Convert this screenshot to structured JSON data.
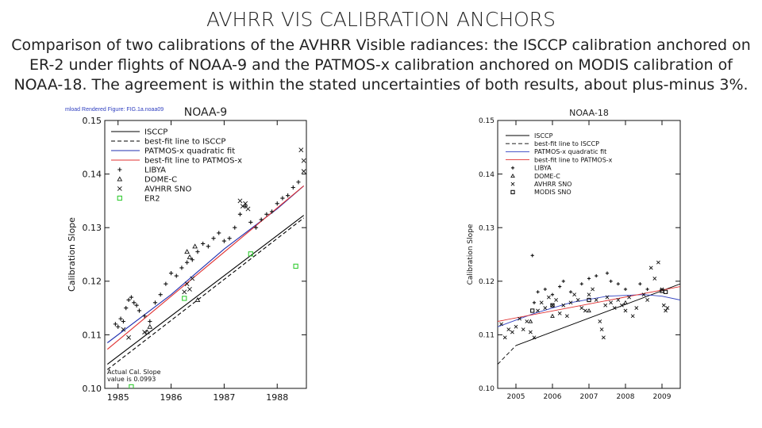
{
  "slide": {
    "title": "AVHRR VIS CALIBRATION ANCHORS",
    "caption": "Comparison of two calibrations of the AVHRR Visible radiances: the ISCCP calibration anchored on ER-2 under flights of NOAA-9 and the PATMOS-x calibration anchored on MODIS calibration of NOAA-18. The agreement is within the stated uncertainties of both results, about plus-minus 3%.",
    "banner": "mload Rendered Figure: FIG.1a.noaa09"
  },
  "chart_data": [
    {
      "type": "scatter",
      "title": "NOAA-9",
      "ylabel": "Calibration Slope",
      "xlabel": "",
      "xlim": [
        1984.75,
        1988.55
      ],
      "ylim": [
        0.1,
        0.15
      ],
      "xticks": [
        1985,
        1986,
        1987,
        1988
      ],
      "yticks": [
        0.1,
        0.11,
        0.12,
        0.13,
        0.14,
        0.15
      ],
      "ytick_labels": [
        "0.10",
        "0.11",
        "0.12",
        "0.13",
        "0.14",
        "0.15"
      ],
      "legend": [
        "ISCCP",
        "best-fit line to ISCCP",
        "PATMOS-x quadratic fit",
        "best-fit line to PATMOS-x",
        "LIBYA",
        "DOME-C",
        "AVHRR SNO",
        "ER2"
      ],
      "legend_position": "top-left",
      "annotation": [
        "Actual Cal. Slope",
        "value is 0.0993"
      ],
      "colors": {
        "isccp": "#000000",
        "patmos_fit": "#2030b0",
        "patmos_line": "#e03030",
        "er2": "#33cc33"
      },
      "series": [
        {
          "name": "ISCCP",
          "style": "solid",
          "points": [
            [
              1984.8,
              0.1045
            ],
            [
              1988.5,
              0.1323
            ]
          ]
        },
        {
          "name": "best-fit line to ISCCP",
          "style": "dashed",
          "points": [
            [
              1984.8,
              0.1035
            ],
            [
              1988.5,
              0.1318
            ]
          ]
        },
        {
          "name": "PATMOS-x quadratic fit",
          "style": "solid",
          "points": [
            [
              1984.8,
              0.1085
            ],
            [
              1986.0,
              0.1175
            ],
            [
              1987.0,
              0.126
            ],
            [
              1988.0,
              0.1335
            ],
            [
              1988.5,
              0.1378
            ]
          ]
        },
        {
          "name": "best-fit line to PATMOS-x",
          "style": "solid",
          "points": [
            [
              1984.8,
              0.1073
            ],
            [
              1988.5,
              0.1378
            ]
          ]
        },
        {
          "name": "LIBYA",
          "marker": "plus",
          "points": [
            [
              1984.95,
              0.112
            ],
            [
              1985.0,
              0.1115
            ],
            [
              1985.05,
              0.113
            ],
            [
              1985.1,
              0.1125
            ],
            [
              1985.15,
              0.115
            ],
            [
              1985.2,
              0.1165
            ],
            [
              1985.25,
              0.117
            ],
            [
              1985.3,
              0.116
            ],
            [
              1985.35,
              0.1155
            ],
            [
              1985.4,
              0.1145
            ],
            [
              1985.5,
              0.1135
            ],
            [
              1985.6,
              0.1125
            ],
            [
              1985.7,
              0.116
            ],
            [
              1985.8,
              0.1175
            ],
            [
              1985.9,
              0.1195
            ],
            [
              1986.0,
              0.1215
            ],
            [
              1986.1,
              0.121
            ],
            [
              1986.2,
              0.1225
            ],
            [
              1986.3,
              0.1235
            ],
            [
              1986.4,
              0.124
            ],
            [
              1986.5,
              0.1255
            ],
            [
              1986.6,
              0.127
            ],
            [
              1986.7,
              0.1265
            ],
            [
              1986.8,
              0.128
            ],
            [
              1986.9,
              0.129
            ],
            [
              1987.0,
              0.1275
            ],
            [
              1987.1,
              0.128
            ],
            [
              1987.2,
              0.13
            ],
            [
              1987.3,
              0.1325
            ],
            [
              1987.4,
              0.134
            ],
            [
              1987.5,
              0.131
            ],
            [
              1987.6,
              0.13
            ],
            [
              1987.7,
              0.1315
            ],
            [
              1987.8,
              0.1325
            ],
            [
              1987.9,
              0.133
            ],
            [
              1988.0,
              0.1345
            ],
            [
              1988.1,
              0.1355
            ],
            [
              1988.2,
              0.136
            ],
            [
              1988.3,
              0.1375
            ],
            [
              1988.4,
              0.1385
            ]
          ]
        },
        {
          "name": "DOME-C",
          "marker": "triangle",
          "points": [
            [
              1985.55,
              0.1105
            ],
            [
              1985.6,
              0.1115
            ],
            [
              1986.3,
              0.1255
            ],
            [
              1986.35,
              0.1245
            ],
            [
              1986.45,
              0.1265
            ],
            [
              1986.5,
              0.1165
            ]
          ]
        },
        {
          "name": "AVHRR SNO",
          "marker": "x",
          "points": [
            [
              1985.1,
              0.111
            ],
            [
              1985.2,
              0.1095
            ],
            [
              1985.5,
              0.1105
            ],
            [
              1986.25,
              0.118
            ],
            [
              1986.3,
              0.1195
            ],
            [
              1986.35,
              0.1185
            ],
            [
              1986.4,
              0.1205
            ],
            [
              1987.3,
              0.135
            ],
            [
              1987.35,
              0.134
            ],
            [
              1987.4,
              0.1345
            ],
            [
              1987.45,
              0.1335
            ],
            [
              1988.45,
              0.1445
            ],
            [
              1988.5,
              0.1425
            ],
            [
              1988.5,
              0.1405
            ]
          ]
        },
        {
          "name": "ER2",
          "marker": "square",
          "points": [
            [
              1985.25,
              0.1003
            ],
            [
              1986.25,
              0.1168
            ],
            [
              1987.5,
              0.1251
            ],
            [
              1988.35,
              0.1228
            ]
          ]
        }
      ]
    },
    {
      "type": "scatter",
      "title": "NOAA-18",
      "ylabel": "Calibration Slope",
      "xlabel": "",
      "xlim": [
        2004.5,
        2009.5
      ],
      "ylim": [
        0.1,
        0.15
      ],
      "xticks": [
        2005,
        2006,
        2007,
        2008,
        2009
      ],
      "yticks": [
        0.1,
        0.11,
        0.12,
        0.13,
        0.14,
        0.15
      ],
      "ytick_labels": [
        "0.10",
        "0.11",
        "0.12",
        "0.13",
        "0.14",
        "0.15"
      ],
      "legend": [
        "ISCCP",
        "best-fit line to ISCCP",
        "PATMOS-x quadratic fit",
        "best-fit line to PATMOS-x",
        "LIBYA",
        "DOME-C",
        "AVHRR SNO",
        "MODIS SNO"
      ],
      "legend_position": "top-left",
      "colors": {
        "isccp": "#000000",
        "patmos_fit": "#3040c0",
        "patmos_line": "#e03030"
      },
      "series": [
        {
          "name": "ISCCP",
          "style": "solid",
          "points": [
            [
              2005.0,
              0.108
            ],
            [
              2009.5,
              0.1195
            ]
          ]
        },
        {
          "name": "best-fit line to ISCCP",
          "style": "dashed",
          "points": [
            [
              2004.5,
              0.1045
            ],
            [
              2005.0,
              0.108
            ]
          ]
        },
        {
          "name": "PATMOS-x quadratic fit",
          "style": "solid",
          "points": [
            [
              2004.5,
              0.1115
            ],
            [
              2005.5,
              0.114
            ],
            [
              2006.5,
              0.116
            ],
            [
              2007.5,
              0.1172
            ],
            [
              2008.5,
              0.1175
            ],
            [
              2009.0,
              0.1172
            ],
            [
              2009.5,
              0.1165
            ]
          ]
        },
        {
          "name": "best-fit line to PATMOS-x",
          "style": "solid",
          "points": [
            [
              2004.5,
              0.1125
            ],
            [
              2009.5,
              0.119
            ]
          ]
        },
        {
          "name": "LIBYA",
          "marker": "plus",
          "points": [
            [
              2005.45,
              0.1248
            ],
            [
              2005.5,
              0.116
            ],
            [
              2005.6,
              0.118
            ],
            [
              2005.8,
              0.1185
            ],
            [
              2006.0,
              0.1175
            ],
            [
              2006.2,
              0.119
            ],
            [
              2006.3,
              0.12
            ],
            [
              2006.5,
              0.118
            ],
            [
              2006.8,
              0.1195
            ],
            [
              2007.0,
              0.1205
            ],
            [
              2007.2,
              0.121
            ],
            [
              2007.5,
              0.1215
            ],
            [
              2007.6,
              0.12
            ],
            [
              2007.8,
              0.1195
            ],
            [
              2008.0,
              0.1185
            ],
            [
              2008.4,
              0.1195
            ],
            [
              2008.6,
              0.1185
            ]
          ]
        },
        {
          "name": "DOME-C",
          "marker": "triangle",
          "points": [
            [
              2005.4,
              0.1125
            ],
            [
              2006.0,
              0.1135
            ],
            [
              2007.0,
              0.1145
            ],
            [
              2008.0,
              0.116
            ]
          ]
        },
        {
          "name": "AVHRR SNO",
          "marker": "x",
          "points": [
            [
              2004.6,
              0.112
            ],
            [
              2004.7,
              0.1095
            ],
            [
              2004.8,
              0.111
            ],
            [
              2004.9,
              0.1105
            ],
            [
              2005.0,
              0.1115
            ],
            [
              2005.1,
              0.113
            ],
            [
              2005.2,
              0.111
            ],
            [
              2005.3,
              0.1125
            ],
            [
              2005.4,
              0.1105
            ],
            [
              2005.5,
              0.1095
            ],
            [
              2005.6,
              0.1145
            ],
            [
              2005.7,
              0.116
            ],
            [
              2005.8,
              0.115
            ],
            [
              2005.9,
              0.117
            ],
            [
              2006.0,
              0.1155
            ],
            [
              2006.1,
              0.1165
            ],
            [
              2006.2,
              0.114
            ],
            [
              2006.3,
              0.1155
            ],
            [
              2006.4,
              0.1135
            ],
            [
              2006.5,
              0.116
            ],
            [
              2006.6,
              0.1175
            ],
            [
              2006.7,
              0.1165
            ],
            [
              2006.8,
              0.115
            ],
            [
              2006.9,
              0.1145
            ],
            [
              2007.0,
              0.1175
            ],
            [
              2007.1,
              0.1185
            ],
            [
              2007.2,
              0.1165
            ],
            [
              2007.3,
              0.1125
            ],
            [
              2007.35,
              0.111
            ],
            [
              2007.4,
              0.1095
            ],
            [
              2007.45,
              0.1155
            ],
            [
              2007.5,
              0.117
            ],
            [
              2007.6,
              0.116
            ],
            [
              2007.7,
              0.115
            ],
            [
              2007.8,
              0.1165
            ],
            [
              2007.9,
              0.1155
            ],
            [
              2008.0,
              0.1145
            ],
            [
              2008.1,
              0.117
            ],
            [
              2008.2,
              0.1135
            ],
            [
              2008.3,
              0.115
            ],
            [
              2008.5,
              0.1175
            ],
            [
              2008.6,
              0.1165
            ],
            [
              2008.7,
              0.1225
            ],
            [
              2008.8,
              0.1205
            ],
            [
              2008.9,
              0.1235
            ],
            [
              2009.0,
              0.1185
            ],
            [
              2009.05,
              0.1155
            ],
            [
              2009.1,
              0.1145
            ],
            [
              2009.15,
              0.115
            ]
          ]
        },
        {
          "name": "MODIS SNO",
          "marker": "square",
          "points": [
            [
              2005.45,
              0.1145
            ],
            [
              2006.0,
              0.1155
            ],
            [
              2007.0,
              0.1165
            ],
            [
              2009.0,
              0.1182
            ],
            [
              2009.1,
              0.118
            ]
          ]
        }
      ]
    }
  ]
}
